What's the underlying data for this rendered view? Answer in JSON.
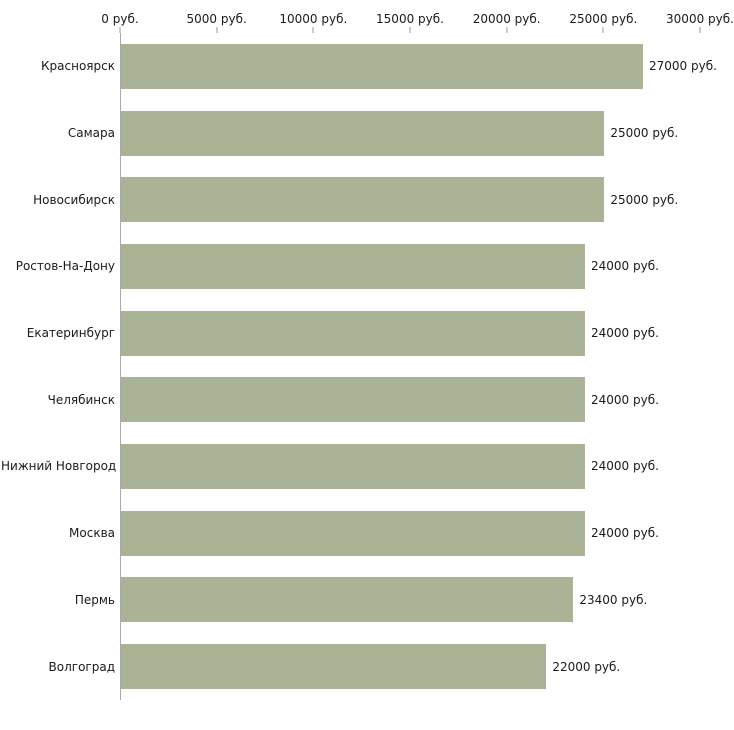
{
  "chart_data": {
    "type": "bar",
    "orientation": "horizontal",
    "title": "",
    "xlabel": "",
    "ylabel": "",
    "categories": [
      "Красноярск",
      "Самара",
      "Новосибирск",
      "Ростов-На-Дону",
      "Екатеринбург",
      "Челябинск",
      "Нижний Новгород",
      "Москва",
      "Пермь",
      "Волгоград"
    ],
    "values": [
      27000,
      25000,
      25000,
      24000,
      24000,
      24000,
      24000,
      24000,
      23400,
      22000
    ],
    "value_labels": [
      "27000 руб.",
      "25000 руб.",
      "25000 руб.",
      "24000 руб.",
      "24000 руб.",
      "24000 руб.",
      "24000 руб.",
      "24000 руб.",
      "23400 руб.",
      "22000 руб."
    ],
    "xlim": [
      0,
      30000
    ],
    "x_ticks": [
      0,
      5000,
      10000,
      15000,
      20000,
      25000,
      30000
    ],
    "x_tick_labels": [
      "0 руб.",
      "5000 руб.",
      "10000 руб.",
      "15000 руб.",
      "20000 руб.",
      "25000 руб.",
      "30000 руб."
    ],
    "grid": false,
    "legend": false,
    "colors": {
      "bar_fill": "#abb396",
      "axis_line": "#aaaaaa",
      "tick_mark": "#999999",
      "text": "#1a1a1a",
      "background": "#ffffff"
    }
  }
}
